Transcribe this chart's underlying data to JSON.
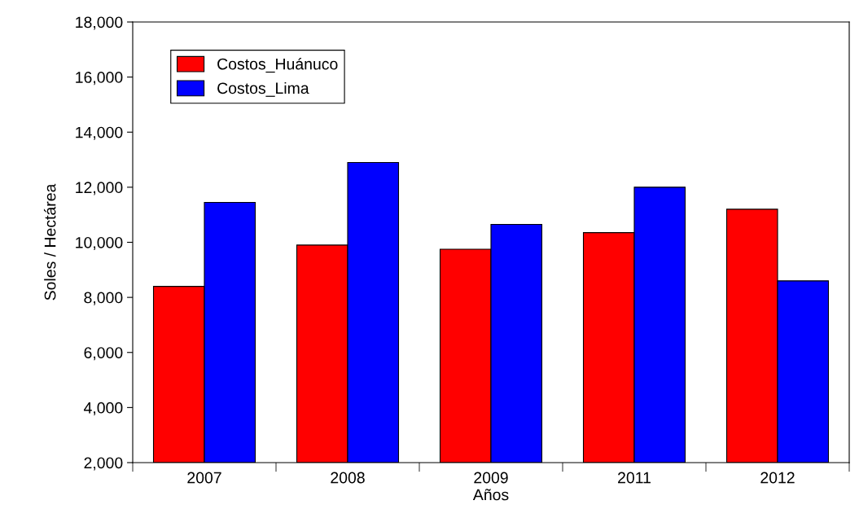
{
  "chart_data": {
    "type": "bar",
    "xlabel": "Años",
    "ylabel": "Soles / Hectárea",
    "categories": [
      "2007",
      "2008",
      "2009",
      "2011",
      "2012"
    ],
    "series": [
      {
        "name": "Costos_Huánuco",
        "color": "#ff0000",
        "values": [
          8400,
          9900,
          9750,
          10350,
          11200
        ]
      },
      {
        "name": "Costos_Lima",
        "color": "#0000ff",
        "values": [
          11450,
          12900,
          10650,
          12000,
          8600
        ]
      }
    ],
    "ylim": [
      2000,
      18000
    ],
    "yticks": [
      {
        "value": 2000,
        "label": "2,000"
      },
      {
        "value": 4000,
        "label": "4,000"
      },
      {
        "value": 6000,
        "label": "6,000"
      },
      {
        "value": 8000,
        "label": "8,000"
      },
      {
        "value": 10000,
        "label": "10,000"
      },
      {
        "value": 12000,
        "label": "12,000"
      },
      {
        "value": 14000,
        "label": "14,000"
      },
      {
        "value": 16000,
        "label": "16,000"
      },
      {
        "value": 18000,
        "label": "18,000"
      }
    ],
    "grid": false,
    "legend": "top left"
  }
}
